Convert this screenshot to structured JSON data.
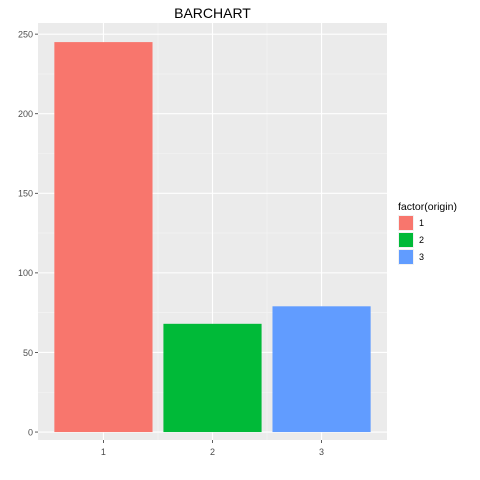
{
  "chart_data": {
    "type": "bar",
    "title": "BARCHART",
    "xlabel": "",
    "ylabel": "",
    "categories": [
      "1",
      "2",
      "3"
    ],
    "values": [
      245,
      68,
      79
    ],
    "colors": [
      "#f8766d",
      "#00ba38",
      "#619cff"
    ],
    "ylim": [
      -5,
      257
    ],
    "yticks": [
      0,
      50,
      100,
      150,
      200,
      250
    ],
    "ytick_labels": [
      "0",
      "50",
      "100",
      "150",
      "200",
      "250"
    ],
    "grid": true,
    "panel_background": "#ebebeb",
    "legend": {
      "title": "factor(origin)",
      "placement": "right",
      "items": [
        {
          "label": "1",
          "color": "#f8766d"
        },
        {
          "label": "2",
          "color": "#00ba38"
        },
        {
          "label": "3",
          "color": "#619cff"
        }
      ]
    }
  }
}
